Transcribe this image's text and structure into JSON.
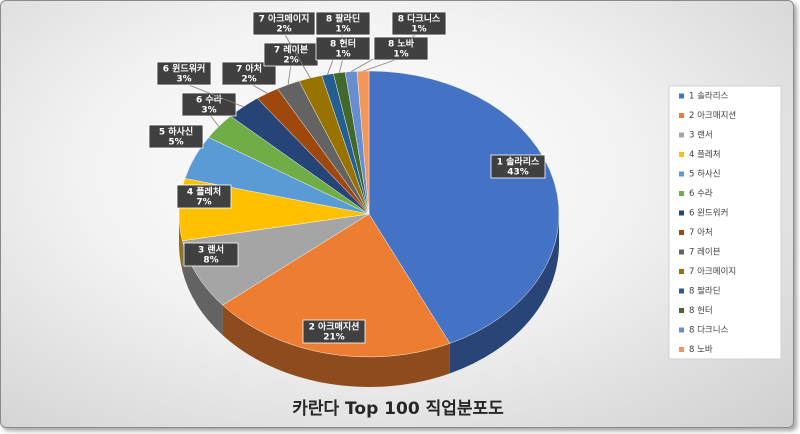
{
  "chart_data": {
    "type": "pie",
    "title": "카란다 Top 100 직업분포도",
    "categories": [
      "1 솔라리스",
      "2 아크매지션",
      "3 랜서",
      "4 플레처",
      "5 하사신",
      "6 수라",
      "6 윈드워커",
      "7 아처",
      "7 레이븐",
      "7 아크메이지",
      "8 팔라딘",
      "8 헌터",
      "8 다크니스",
      "8 노바"
    ],
    "values": [
      43,
      21,
      8,
      7,
      5,
      3,
      3,
      2,
      2,
      2,
      1,
      1,
      1,
      1
    ],
    "value_labels": [
      "43%",
      "21%",
      "8%",
      "7%",
      "5%",
      "3%",
      "3%",
      "2%",
      "2%",
      "2%",
      "1%",
      "1%",
      "1%",
      "1%"
    ],
    "colors": [
      "#4472c4",
      "#ed7d31",
      "#a5a5a5",
      "#ffc000",
      "#5b9bd5",
      "#70ad47",
      "#264478",
      "#9e480e",
      "#636363",
      "#997300",
      "#255e91",
      "#43682b",
      "#698ed0",
      "#f1975a"
    ],
    "legend": "right"
  }
}
